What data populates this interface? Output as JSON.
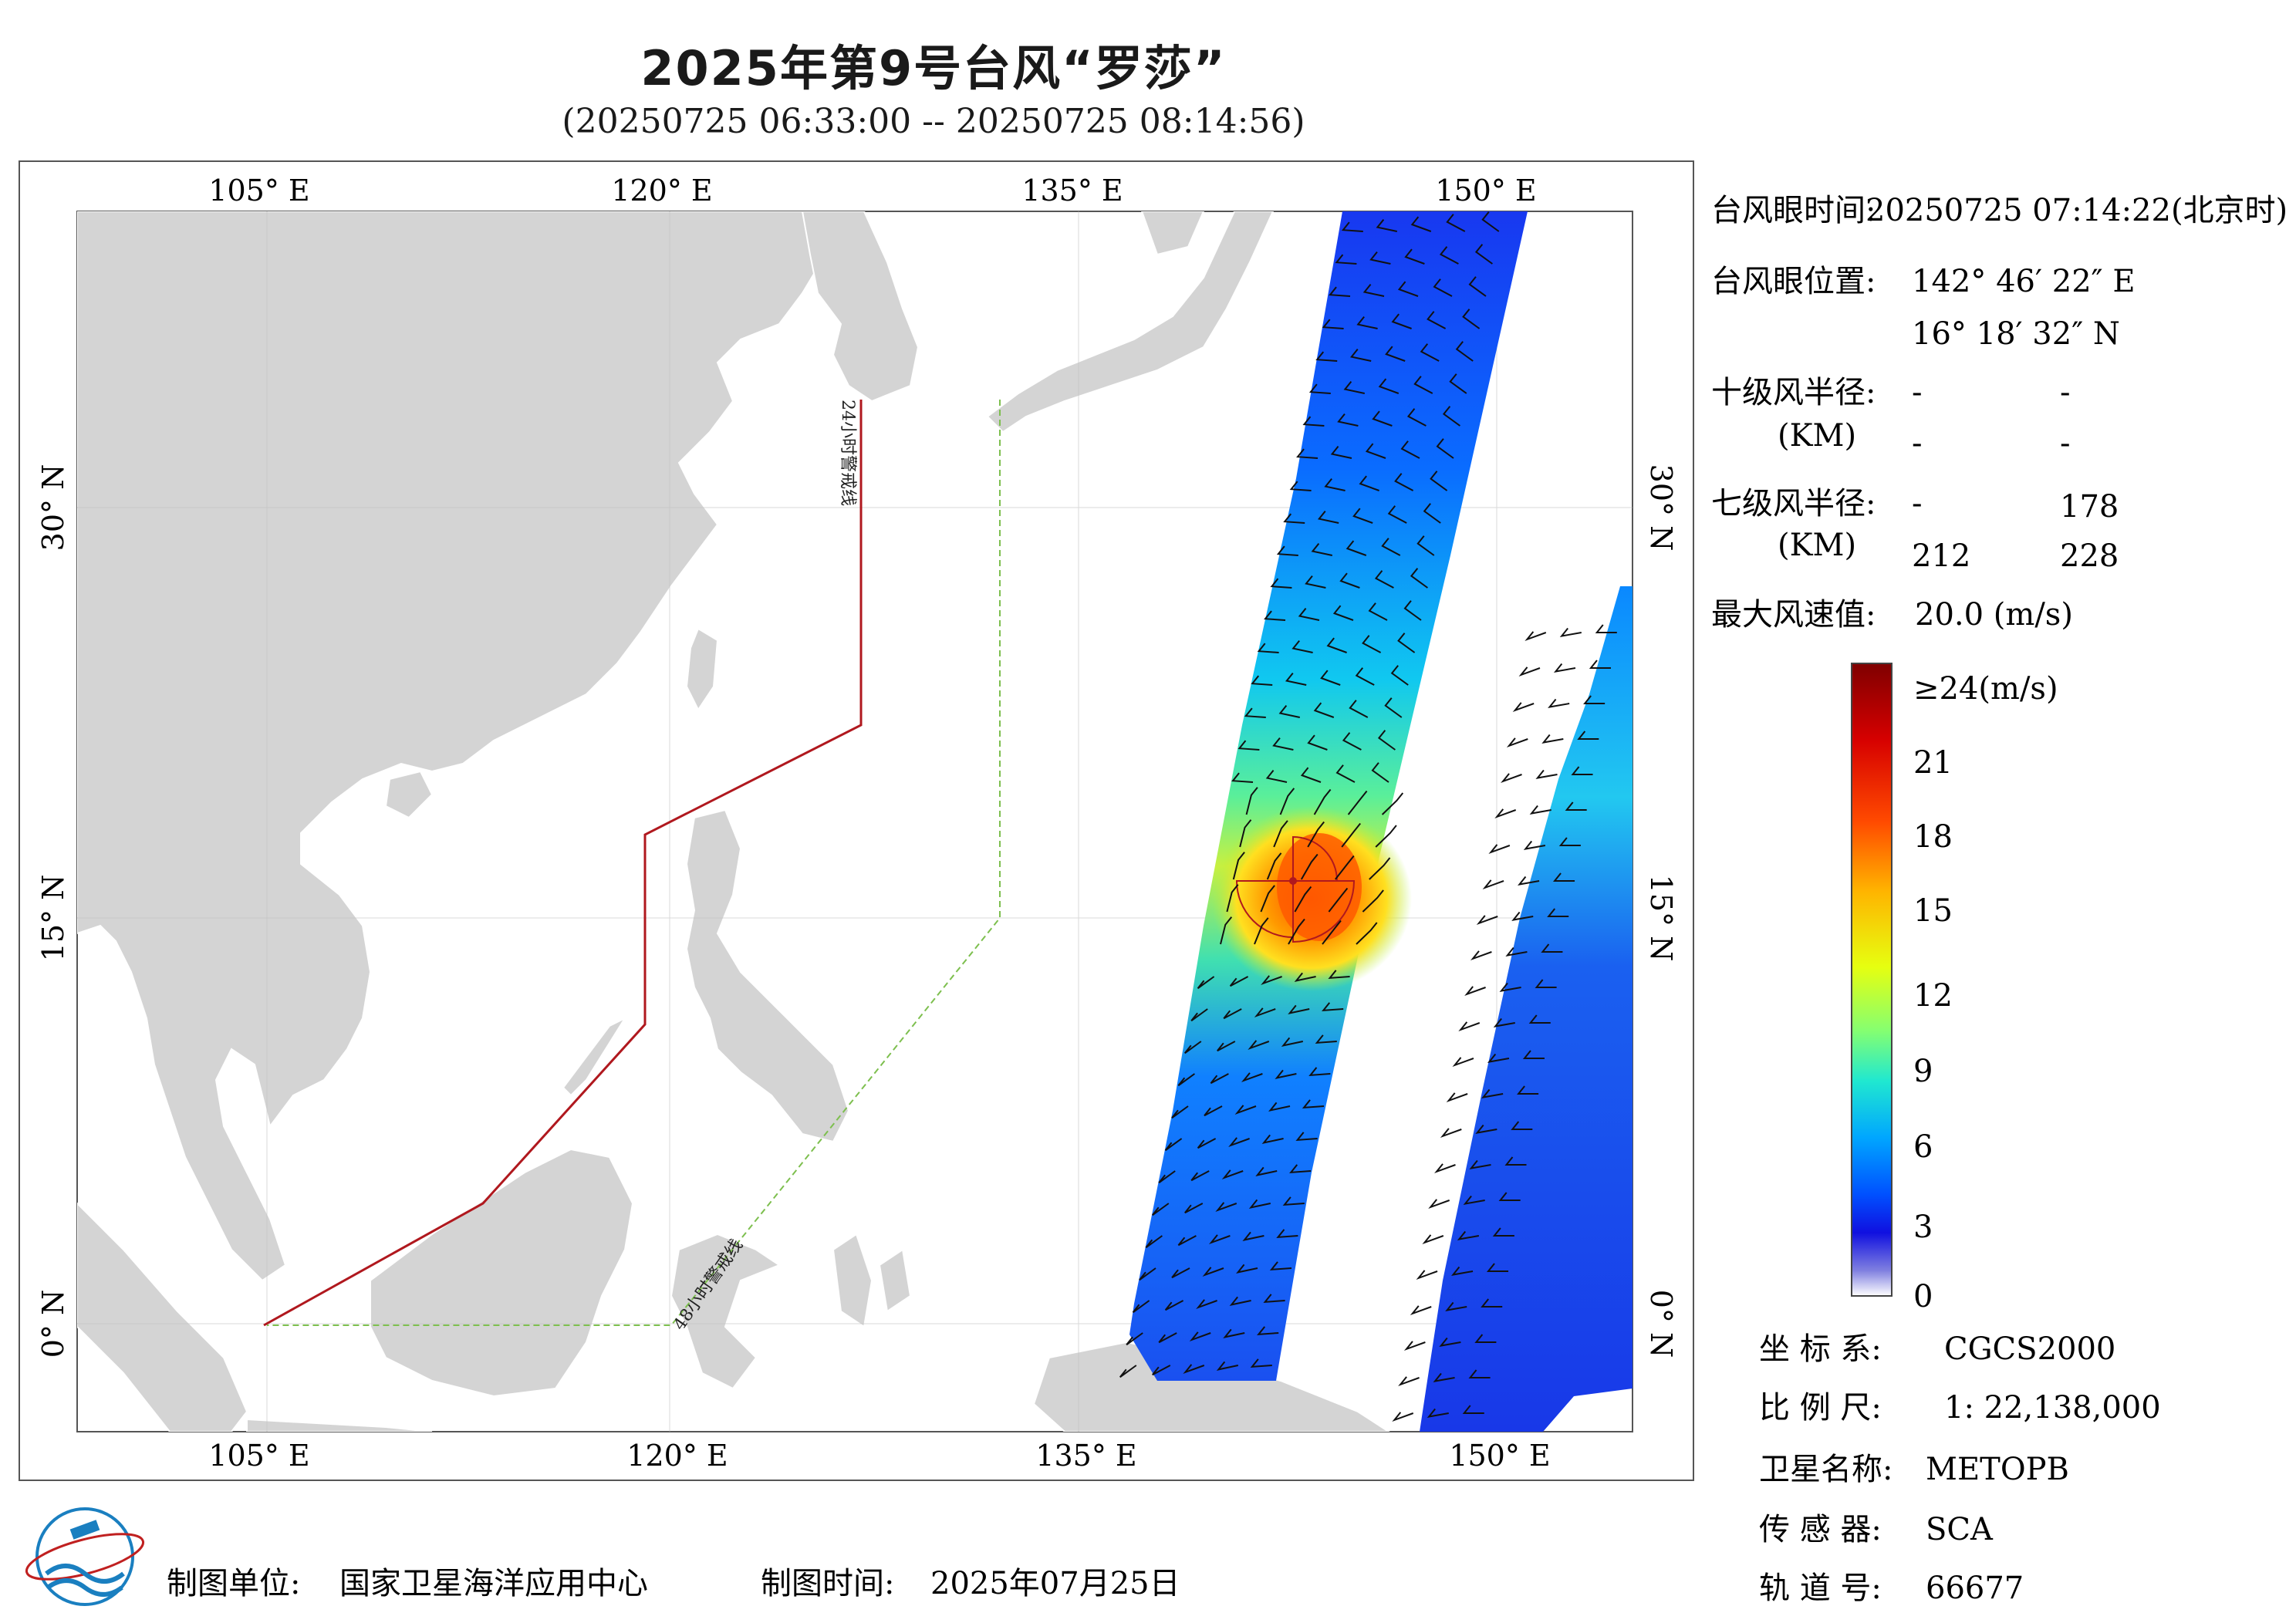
{
  "title": "2025年第9号台风“罗莎”",
  "subtitle": "(20250725 06:33:00 -- 20250725 08:14:56)",
  "map": {
    "lon_labels": [
      "105° E",
      "120° E",
      "135° E",
      "150° E"
    ],
    "lat_labels": [
      "30° N",
      "15° N",
      "0° N"
    ],
    "warning_24h": "24小时警戒线",
    "warning_48h": "48小时警戒线",
    "colors": {
      "land": "#d4d4d4",
      "sea": "#ffffff",
      "line_24h": "#b0181e",
      "line_48h": "#7dbf4e"
    }
  },
  "info": {
    "eye_time_label": "台风眼时间:",
    "eye_time_value": "20250725 07:14:22(北京时)",
    "eye_pos_label": "台风眼位置:",
    "eye_lon": "142° 46′ 22″ E",
    "eye_lat": "16° 18′ 32″ N",
    "r10_label": "十级风半径:",
    "r10_unit": "(KM)",
    "r10_values": [
      "-",
      "-",
      "-",
      "-"
    ],
    "r7_label": "七级风半径:",
    "r7_unit": "(KM)",
    "r7_values": [
      "-",
      "178",
      "212",
      "228"
    ],
    "max_wind_label": "最大风速值:",
    "max_wind_value": "20.0 (m/s)"
  },
  "colorbar": {
    "labels": [
      "≥24(m/s)",
      "21",
      "18",
      "15",
      "12",
      "9",
      "6",
      "3",
      "0"
    ],
    "stops": [
      "#7f0000",
      "#d60000",
      "#ff4a00",
      "#ffb400",
      "#e6ff10",
      "#86ff70",
      "#20e8d0",
      "#00a6ff",
      "#0050ff",
      "#1010e0",
      "#8080e0",
      "#ffffff"
    ]
  },
  "meta": {
    "crs_label": "坐 标 系:",
    "crs_value": "CGCS2000",
    "scale_label": "比 例 尺:",
    "scale_value": "1: 22,138,000",
    "sat_label": "卫星名称:",
    "sat_value": "METOPB",
    "sensor_label": "传 感 器:",
    "sensor_value": "SCA",
    "orbit_label": "轨 道 号:",
    "orbit_value": "66677"
  },
  "footer": {
    "unit_label": "制图单位:",
    "unit_value": "国家卫星海洋应用中心",
    "time_label": "制图时间:",
    "time_value": "2025年07月25日"
  }
}
